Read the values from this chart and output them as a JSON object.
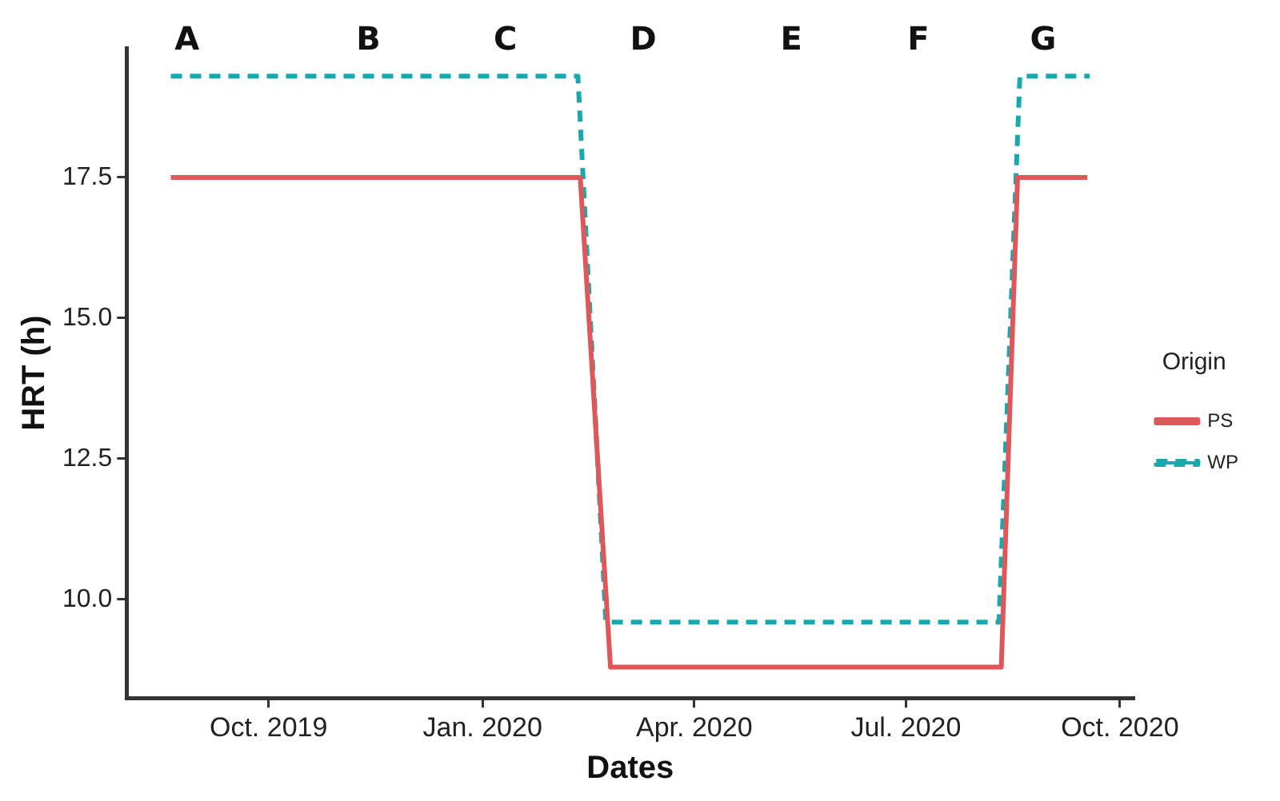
{
  "chart_data": {
    "type": "line",
    "xlabel": "Dates",
    "ylabel": "HRT (h)",
    "legend_title": "Origin",
    "legend": "right",
    "grid": false,
    "marker": "none",
    "series": [
      {
        "name": "PS",
        "color": "#e0575a",
        "line_style": "solid",
        "x": [
          "2019-08-20",
          "2020-02-12",
          "2020-02-25",
          "2020-08-11",
          "2020-08-18",
          "2020-09-17"
        ],
        "values": [
          17.5,
          17.5,
          8.8,
          8.8,
          17.5,
          17.5
        ]
      },
      {
        "name": "WP",
        "color": "#17a9ae",
        "line_style": "dashed",
        "x": [
          "2019-08-20",
          "2020-02-11",
          "2020-02-23",
          "2020-08-10",
          "2020-08-19",
          "2020-09-18"
        ],
        "values": [
          19.3,
          19.3,
          9.6,
          9.6,
          19.3,
          19.3
        ]
      }
    ],
    "xlim": [
      "2019-08-01",
      "2020-10-07"
    ],
    "xticks": [
      {
        "value": "2019-10-01",
        "label": "Oct. 2019"
      },
      {
        "value": "2020-01-01",
        "label": "Jan. 2020"
      },
      {
        "value": "2020-04-01",
        "label": "Apr. 2020"
      },
      {
        "value": "2020-07-01",
        "label": "Jul. 2020"
      },
      {
        "value": "2020-10-01",
        "label": "Oct. 2020"
      }
    ],
    "ylim": [
      8.25,
      19.8
    ],
    "yticks": [
      {
        "value": 10,
        "label": "10.0"
      },
      12.5,
      {
        "value": 15,
        "label": "15.0"
      },
      17.5
    ],
    "annotations": [
      "A",
      "B",
      "C",
      "D",
      "E",
      "F",
      "G"
    ]
  }
}
